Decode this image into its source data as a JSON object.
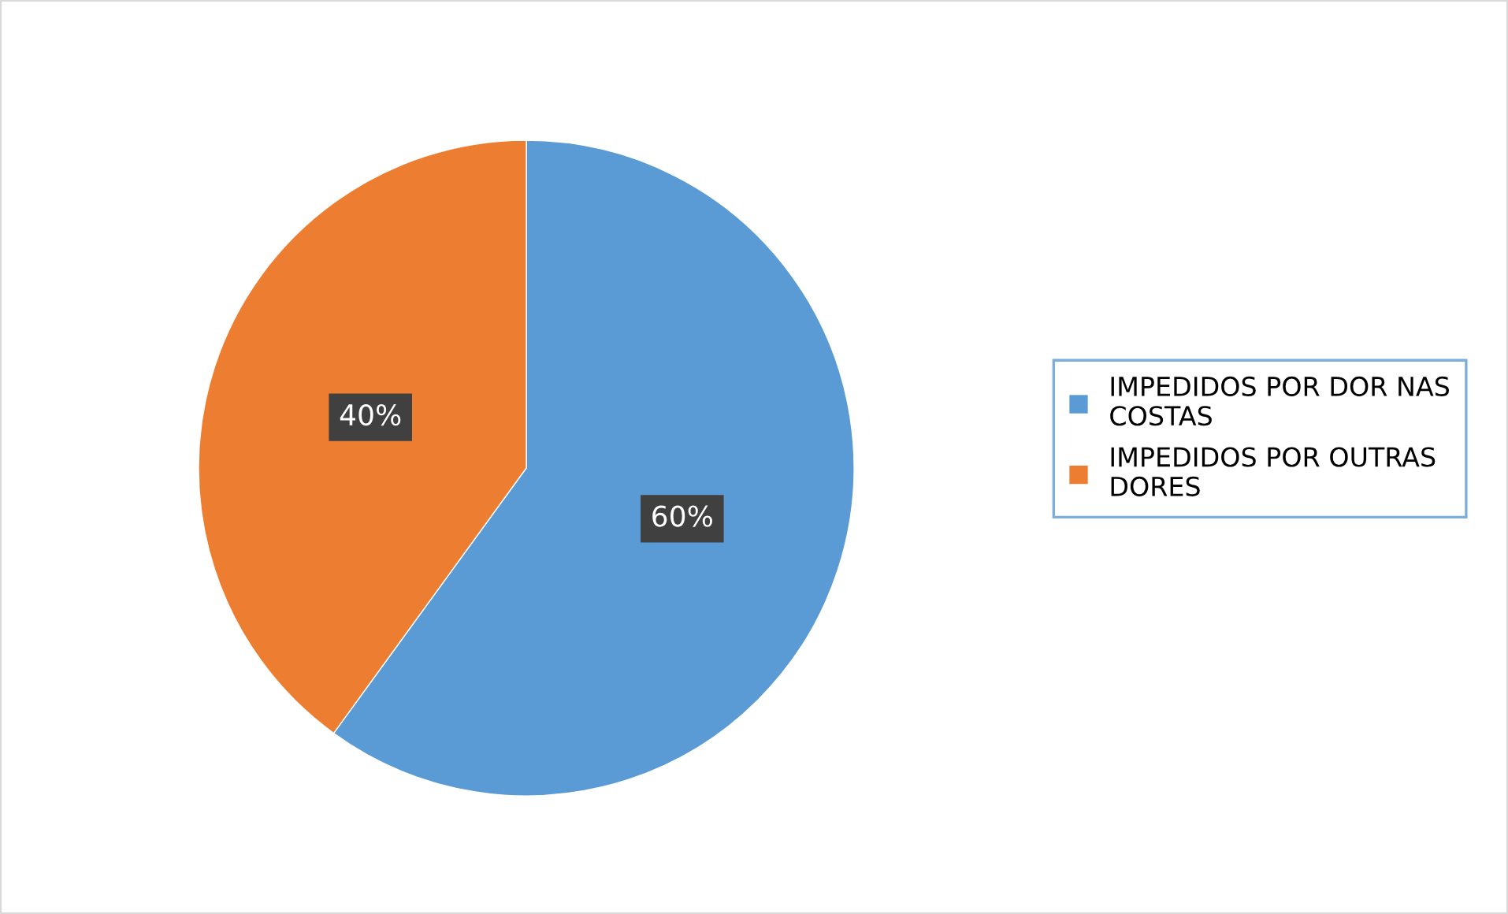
{
  "chart_data": {
    "type": "pie",
    "categories": [
      "IMPEDIDOS POR DOR NAS\nCOSTAS",
      "IMPEDIDOS POR OUTRAS\nDORES"
    ],
    "values": [
      60,
      40
    ],
    "colors": [
      "#5b9bd5",
      "#ed7d31"
    ],
    "value_labels": [
      "60%",
      "40%"
    ],
    "legend": "right"
  }
}
